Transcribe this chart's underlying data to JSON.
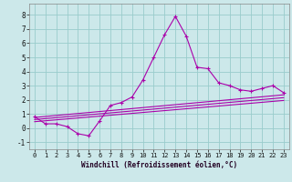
{
  "xlabel": "Windchill (Refroidissement éolien,°C)",
  "bg_color": "#cce8ea",
  "line_color": "#aa00aa",
  "grid_color": "#99cccc",
  "spine_color": "#888888",
  "xlim": [
    -0.5,
    23.5
  ],
  "ylim": [
    -1.5,
    8.8
  ],
  "yticks": [
    -1,
    0,
    1,
    2,
    3,
    4,
    5,
    6,
    7,
    8
  ],
  "xticks": [
    0,
    1,
    2,
    3,
    4,
    5,
    6,
    7,
    8,
    9,
    10,
    11,
    12,
    13,
    14,
    15,
    16,
    17,
    18,
    19,
    20,
    21,
    22,
    23
  ],
  "main_line": [
    [
      0,
      0.8
    ],
    [
      1,
      0.3
    ],
    [
      2,
      0.3
    ],
    [
      3,
      0.1
    ],
    [
      4,
      -0.4
    ],
    [
      5,
      -0.55
    ],
    [
      6,
      0.5
    ],
    [
      7,
      1.6
    ],
    [
      8,
      1.8
    ],
    [
      9,
      2.2
    ],
    [
      10,
      3.4
    ],
    [
      11,
      5.0
    ],
    [
      12,
      6.6
    ],
    [
      13,
      7.9
    ],
    [
      14,
      6.5
    ],
    [
      15,
      4.3
    ],
    [
      16,
      4.2
    ],
    [
      17,
      3.2
    ],
    [
      18,
      3.0
    ],
    [
      19,
      2.7
    ],
    [
      20,
      2.6
    ],
    [
      21,
      2.8
    ],
    [
      22,
      3.0
    ],
    [
      23,
      2.5
    ]
  ],
  "line2": [
    [
      0,
      0.75
    ],
    [
      23,
      2.35
    ]
  ],
  "line3": [
    [
      0,
      0.6
    ],
    [
      23,
      2.15
    ]
  ],
  "line4": [
    [
      0,
      0.45
    ],
    [
      23,
      1.95
    ]
  ],
  "xlabel_color": "#220022",
  "xlabel_fontsize": 5.5,
  "tick_fontsize": 5.0,
  "tick_color": "#111111"
}
